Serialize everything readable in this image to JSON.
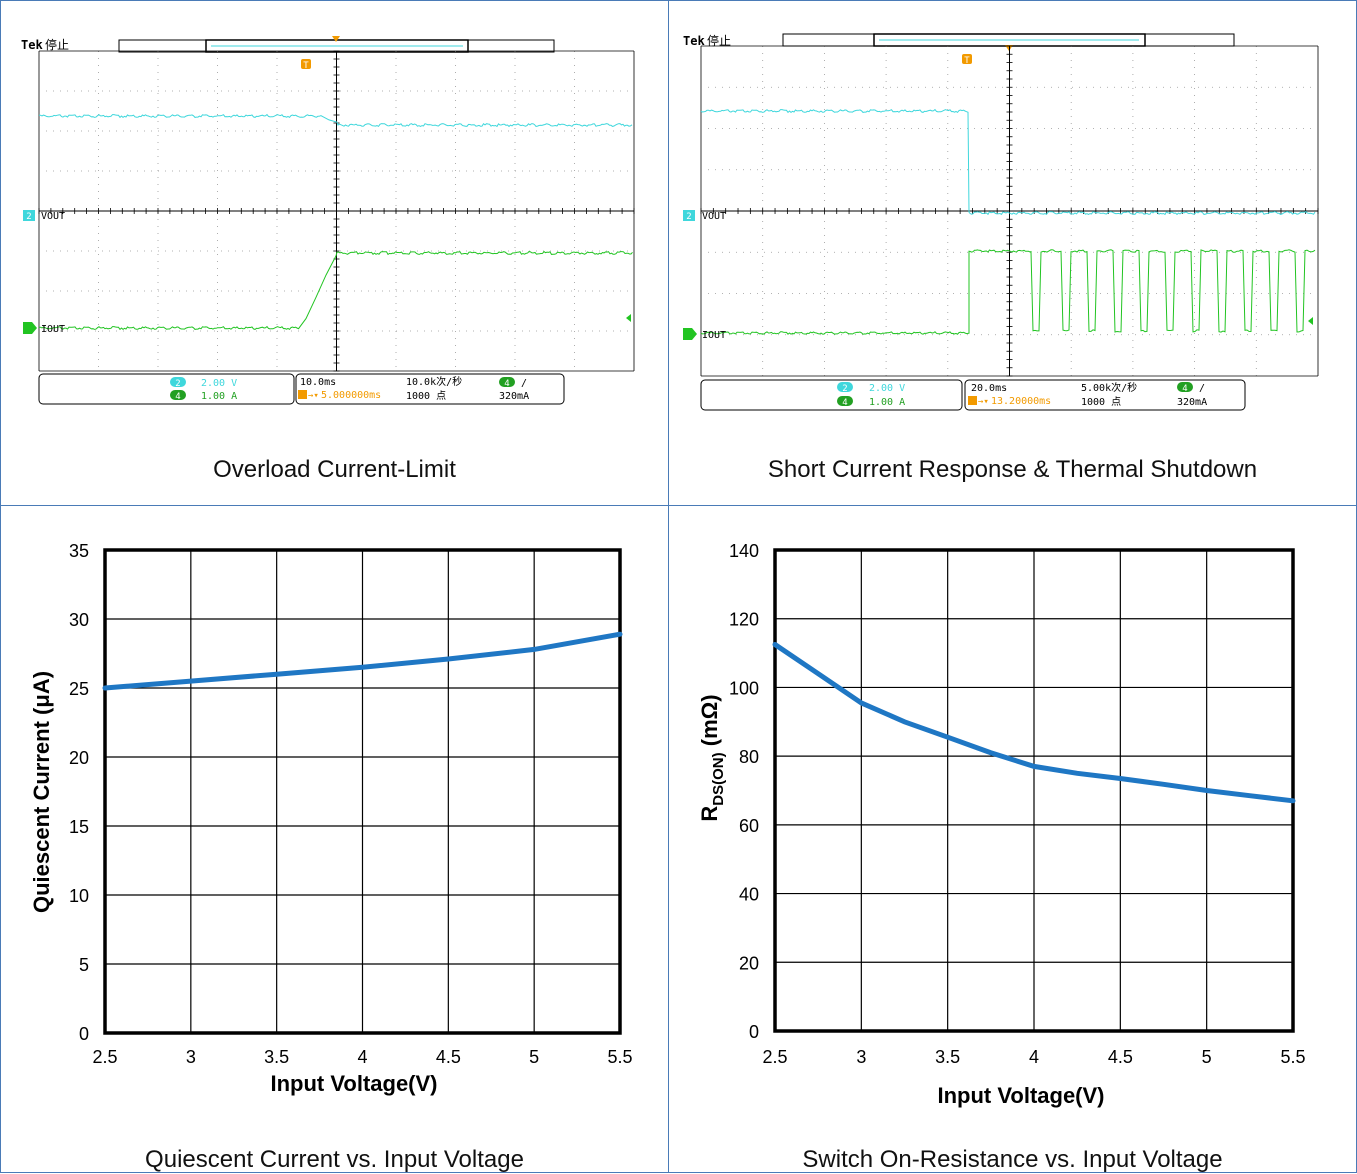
{
  "captions": {
    "overload": "Overload Current-Limit",
    "short": "Short Current Response & Thermal Shutdown",
    "quiescent": "Quiescent Current vs. Input Voltage",
    "rdson": "Switch On-Resistance vs. Input Voltage"
  },
  "colors": {
    "cyan": "#3fd7dc",
    "green": "#22c422",
    "orange": "#f29a00",
    "curve": "#1f77c4",
    "border": "#4a7bb7"
  },
  "scope_overload": {
    "brand": "Tek",
    "status": "停止",
    "trigger_marker": "T",
    "ch2_label": "VOUT",
    "ch4_label": "IOUT",
    "ch2_num": "2",
    "ch4_num": "4",
    "ch2_scale": "2.00 V",
    "ch4_scale": "1.00 A",
    "timebase": "10.0ms",
    "trigger_delay": "5.000000ms",
    "sample_rate": "10.0k次/秒",
    "record_length": "1000 点",
    "trigger_level": "320mA",
    "trigger_slope": "/",
    "trigger_source": "4"
  },
  "scope_short": {
    "brand": "Tek",
    "status": "停止",
    "trigger_marker": "T",
    "ch2_label": "VOUT",
    "ch4_label": "IOUT",
    "ch2_num": "2",
    "ch4_num": "4",
    "ch2_scale": "2.00 V",
    "ch4_scale": "1.00 A",
    "timebase": "20.0ms",
    "trigger_delay": "13.20000ms",
    "sample_rate": "5.00k次/秒",
    "record_length": "1000 点",
    "trigger_level": "320mA",
    "trigger_slope": "/",
    "trigger_source": "4"
  },
  "chart_data": [
    {
      "type": "line",
      "title": "",
      "xlabel": "Input Voltage(V)",
      "ylabel": "Quiescent Current (μA)",
      "xlim": [
        2.5,
        5.5
      ],
      "ylim": [
        0,
        35
      ],
      "xticks": [
        "2.5",
        "3",
        "3.5",
        "4",
        "4.5",
        "5",
        "5.5"
      ],
      "yticks": [
        "0",
        "5",
        "10",
        "15",
        "20",
        "25",
        "30",
        "35"
      ],
      "grid": true,
      "x": [
        2.5,
        3.0,
        3.5,
        4.0,
        4.5,
        5.0,
        5.5
      ],
      "y": [
        25.0,
        25.5,
        26.0,
        26.5,
        27.1,
        27.8,
        28.9
      ]
    },
    {
      "type": "line",
      "title": "",
      "xlabel": "Input Voltage(V)",
      "ylabel_main": "R",
      "ylabel_sub": "DS(ON)",
      "ylabel_unit": " (mΩ)",
      "xlim": [
        2.5,
        5.5
      ],
      "ylim": [
        0,
        140
      ],
      "xticks": [
        "2.5",
        "3",
        "3.5",
        "4",
        "4.5",
        "5",
        "5.5"
      ],
      "yticks": [
        "0",
        "20",
        "40",
        "60",
        "80",
        "100",
        "120",
        "140"
      ],
      "grid": true,
      "x": [
        2.5,
        2.75,
        3.0,
        3.25,
        3.5,
        3.75,
        4.0,
        4.25,
        4.5,
        4.75,
        5.0,
        5.25,
        5.5
      ],
      "y": [
        112.5,
        104.0,
        95.5,
        90.0,
        85.5,
        81.0,
        77.0,
        75.0,
        73.5,
        71.8,
        70.0,
        68.5,
        67.0
      ]
    }
  ]
}
